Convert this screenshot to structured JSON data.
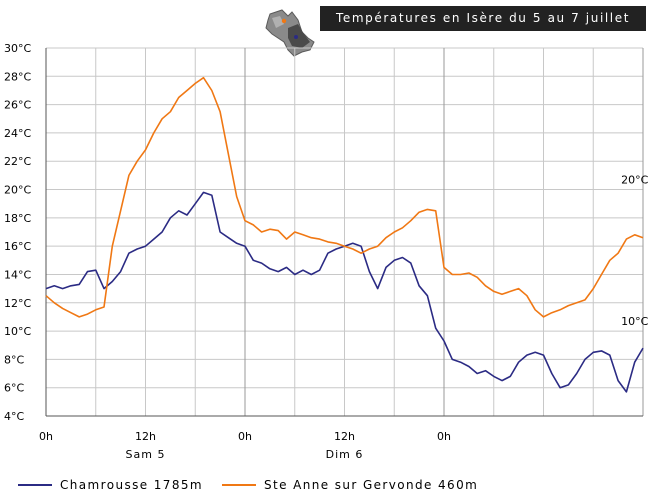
{
  "title": "Températures en Isère du 5 au 7 juillet",
  "chart_data": {
    "type": "line",
    "title": "Températures en Isère du 5 au 7 juillet",
    "xlabel": "",
    "ylabel": "",
    "xlim": [
      0,
      72
    ],
    "ylim": [
      4,
      30
    ],
    "y_ticks": [
      4,
      6,
      8,
      10,
      12,
      14,
      16,
      18,
      20,
      22,
      24,
      26,
      28,
      30
    ],
    "y_tick_labels": [
      "4°C",
      "6°C",
      "8°C",
      "10°C",
      "12°C",
      "14°C",
      "16°C",
      "18°C",
      "20°C",
      "22°C",
      "24°C",
      "26°C",
      "28°C",
      "30°C"
    ],
    "x_ticks": [
      {
        "hour": 0,
        "label": "0h"
      },
      {
        "hour": 12,
        "label": "12h"
      },
      {
        "hour": 24,
        "label": "0h"
      },
      {
        "hour": 36,
        "label": "12h"
      },
      {
        "hour": 48,
        "label": "0h"
      }
    ],
    "day_labels": [
      {
        "hour": 12,
        "label": "Sam 5"
      },
      {
        "hour": 36,
        "label": "Dim 6"
      }
    ],
    "annotations": [
      {
        "hour": 71,
        "value": 20,
        "label": "20°C"
      },
      {
        "hour": 71,
        "value": 10,
        "label": "10°C"
      }
    ],
    "grid": true,
    "legend_position": "bottom",
    "series": [
      {
        "name": "Chamrousse 1785m",
        "color": "#2b2b84",
        "x": [
          0,
          1,
          2,
          3,
          4,
          5,
          6,
          7,
          8,
          9,
          10,
          11,
          12,
          13,
          14,
          15,
          16,
          17,
          18,
          19,
          20,
          21,
          22,
          23,
          24,
          25,
          26,
          27,
          28,
          29,
          30,
          31,
          32,
          33,
          34,
          35,
          36,
          37,
          38,
          39,
          40,
          41,
          42,
          43,
          44,
          45,
          46,
          47,
          48,
          49,
          50,
          51,
          52,
          53,
          54,
          55,
          56,
          57,
          58,
          59,
          60,
          61,
          62,
          63,
          64,
          65,
          66,
          67,
          68,
          69,
          70,
          71,
          72
        ],
        "y": [
          13.0,
          13.2,
          13.0,
          13.2,
          13.3,
          14.2,
          14.3,
          13.0,
          13.5,
          14.2,
          15.5,
          15.8,
          16.0,
          16.5,
          17.0,
          18.0,
          18.5,
          18.2,
          19.0,
          19.8,
          19.6,
          17.0,
          16.6,
          16.2,
          16.0,
          15.0,
          14.8,
          14.4,
          14.2,
          14.5,
          14.0,
          14.3,
          14.0,
          14.3,
          15.5,
          15.8,
          16.0,
          16.2,
          16.0,
          14.2,
          13.0,
          14.5,
          15.0,
          15.2,
          14.8,
          13.2,
          12.5,
          10.2,
          9.3,
          8.0,
          7.8,
          7.5,
          7.0,
          7.2,
          6.8,
          6.5,
          6.8,
          7.8,
          8.3,
          8.5,
          8.3,
          7.0,
          6.0,
          6.2,
          7.0,
          8.0,
          8.5,
          8.6,
          8.3,
          6.5,
          5.7,
          7.8,
          8.8
        ]
      },
      {
        "name": "Ste Anne sur Gervonde 460m",
        "color": "#f07814",
        "x": [
          0,
          1,
          2,
          3,
          4,
          5,
          6,
          7,
          8,
          9,
          10,
          11,
          12,
          13,
          14,
          15,
          16,
          17,
          18,
          19,
          20,
          21,
          22,
          23,
          24,
          25,
          26,
          27,
          28,
          29,
          30,
          31,
          32,
          33,
          34,
          35,
          36,
          37,
          38,
          39,
          40,
          41,
          42,
          43,
          44,
          45,
          46,
          47,
          48,
          49,
          50,
          51,
          52,
          53,
          54,
          55,
          56,
          57,
          58,
          59,
          60,
          61,
          62,
          63,
          64,
          65,
          66,
          67,
          68,
          69,
          70,
          71,
          72
        ],
        "y": [
          12.5,
          12.0,
          11.6,
          11.3,
          11.0,
          11.2,
          11.5,
          11.7,
          16.0,
          18.5,
          21.0,
          22.0,
          22.8,
          24.0,
          25.0,
          25.5,
          26.5,
          27.0,
          27.5,
          27.9,
          27.0,
          25.5,
          22.5,
          19.5,
          17.8,
          17.5,
          17.0,
          17.2,
          17.1,
          16.5,
          17.0,
          16.8,
          16.6,
          16.5,
          16.3,
          16.2,
          16.0,
          15.8,
          15.5,
          15.8,
          16.0,
          16.6,
          17.0,
          17.3,
          17.8,
          18.4,
          18.6,
          18.5,
          14.5,
          14.0,
          14.0,
          14.1,
          13.8,
          13.2,
          12.8,
          12.6,
          12.8,
          13.0,
          12.5,
          11.5,
          11.0,
          11.3,
          11.5,
          11.8,
          12.0,
          12.2,
          13.0,
          14.0,
          15.0,
          15.5,
          16.5,
          16.8,
          16.6
        ]
      }
    ]
  },
  "legend": {
    "items": [
      "Chamrousse 1785m",
      "Ste Anne sur Gervonde 460m"
    ]
  }
}
